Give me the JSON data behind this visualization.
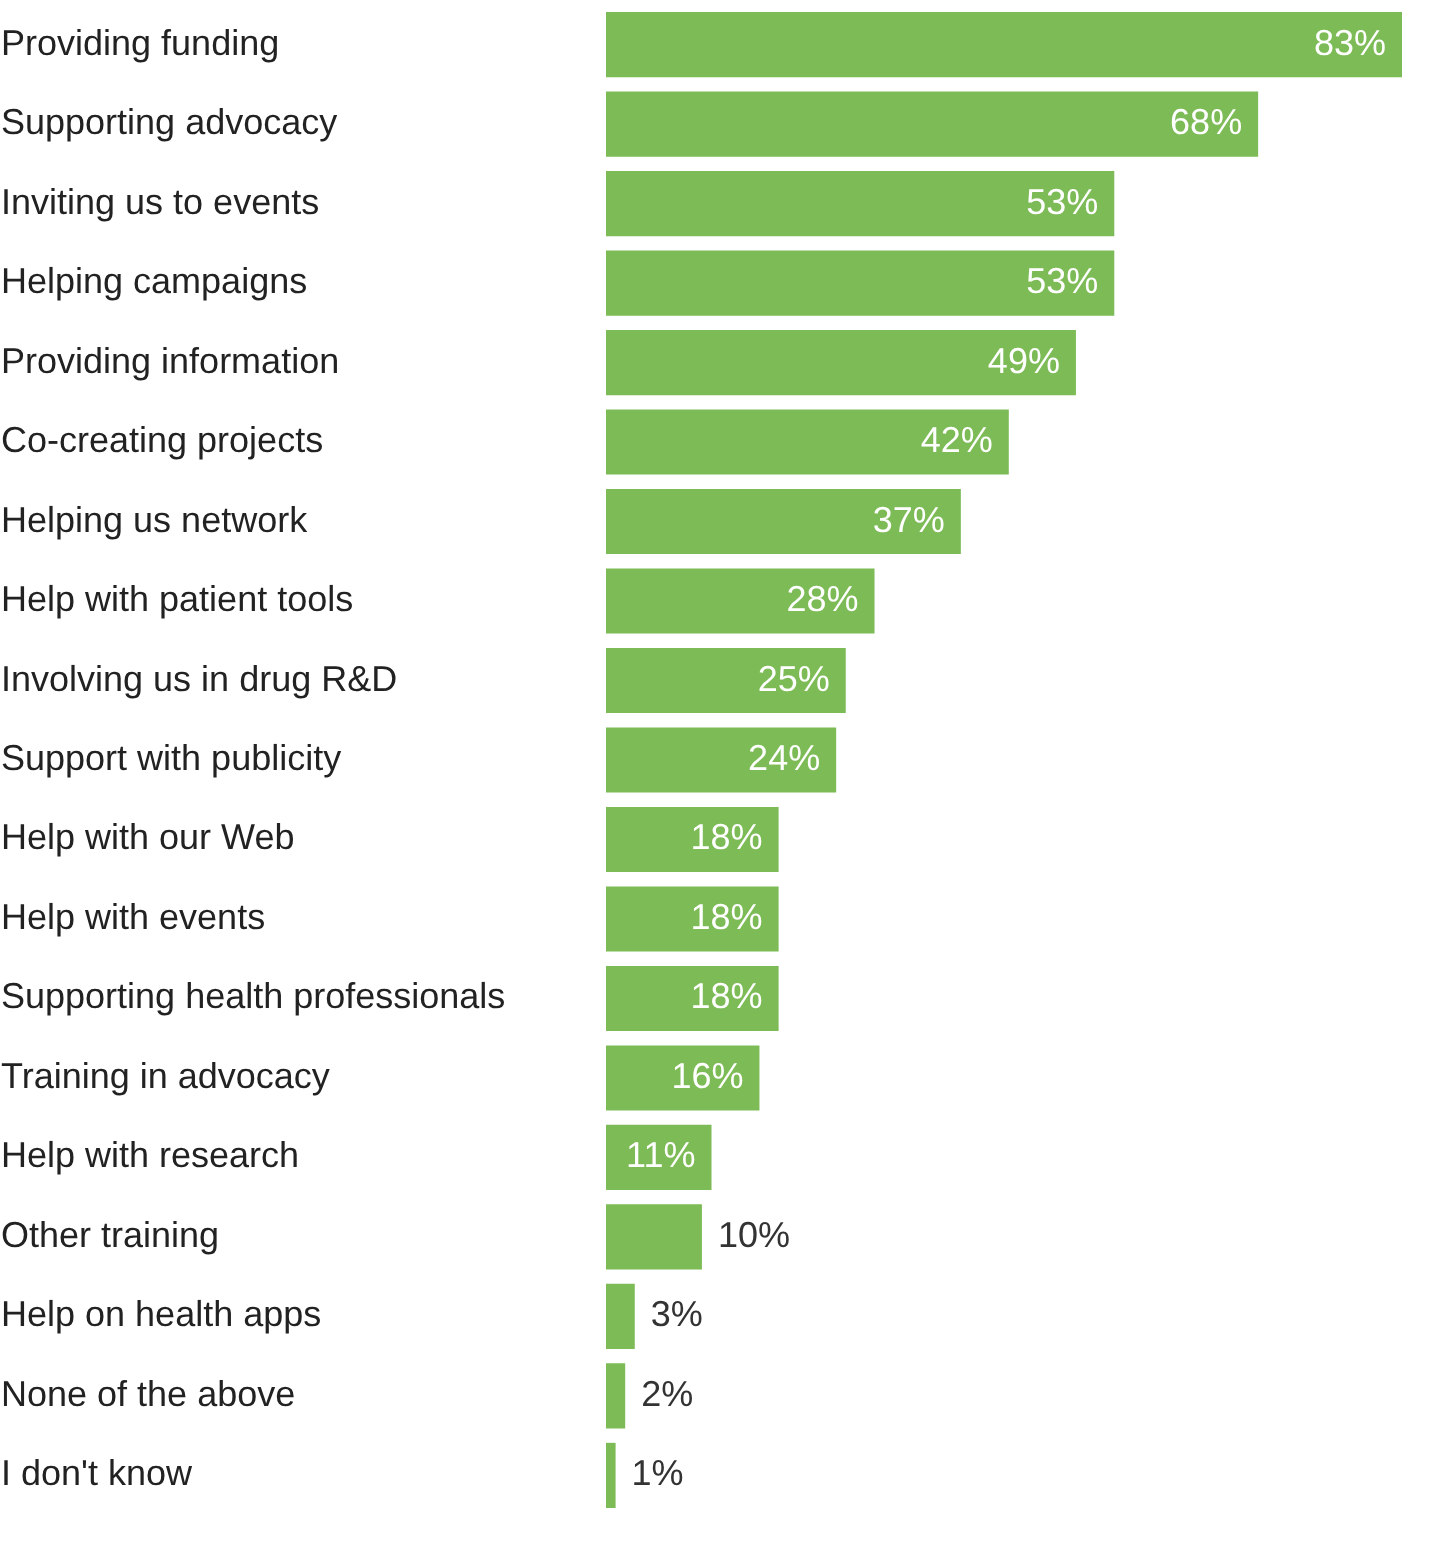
{
  "chart_data": {
    "type": "bar",
    "orientation": "horizontal",
    "color": "#7cbb55",
    "data_labels": true,
    "grid": false,
    "categories": [
      "Providing funding",
      "Supporting advocacy",
      "Inviting us to events",
      "Helping campaigns",
      "Providing information",
      "Co-creating projects",
      "Helping us network",
      "Help with patient tools",
      "Involving us in drug R&D",
      "Support with publicity",
      "Help with our Web",
      "Help with events",
      "Supporting health professionals",
      "Training in advocacy",
      "Help with research",
      "Other training",
      "Help on health apps",
      "None of the above",
      "I don't know"
    ],
    "values": [
      83,
      68,
      53,
      53,
      49,
      42,
      37,
      28,
      25,
      24,
      18,
      18,
      18,
      16,
      11,
      10,
      3,
      2,
      1
    ],
    "value_labels": [
      "83%",
      "68%",
      "53%",
      "53%",
      "49%",
      "42%",
      "37%",
      "28%",
      "25%",
      "24%",
      "18%",
      "18%",
      "18%",
      "16%",
      "11%",
      "10%",
      "3%",
      "2%",
      "1%"
    ],
    "tick_labels": "y"
  }
}
